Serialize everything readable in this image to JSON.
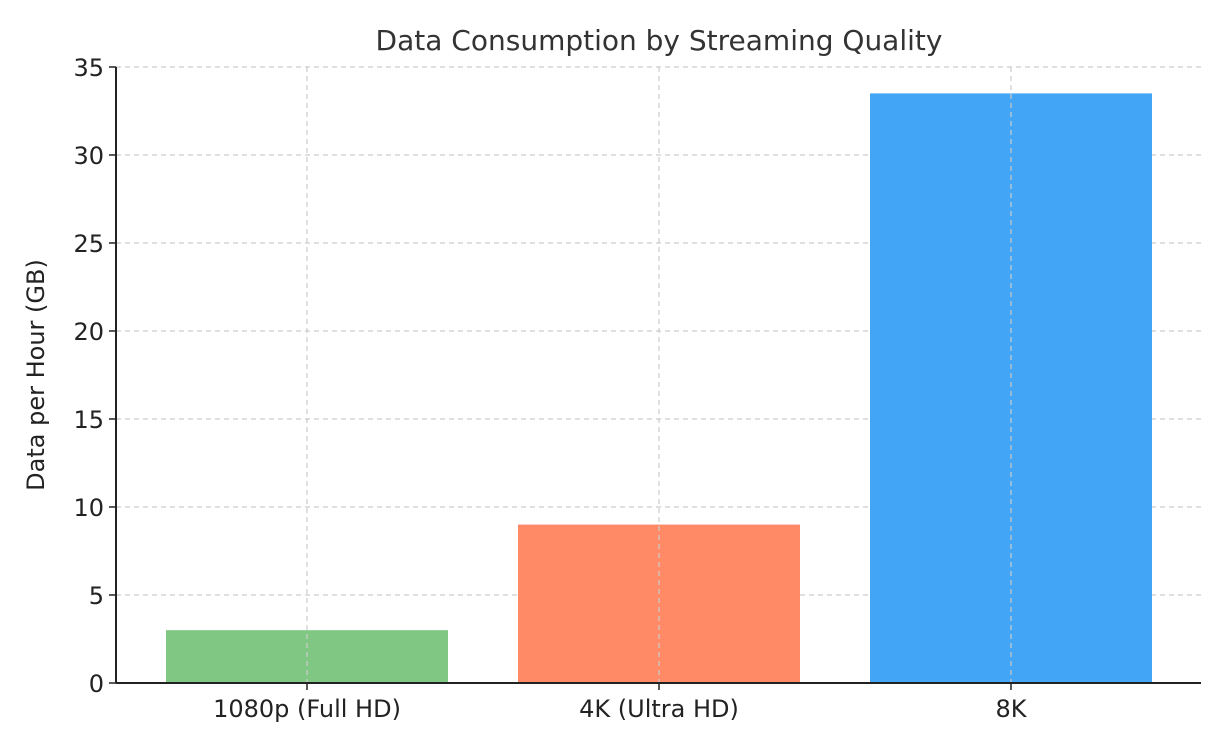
{
  "chart_data": {
    "type": "bar",
    "title": "Data Consumption by Streaming Quality",
    "xlabel": "",
    "ylabel": "Data per Hour (GB)",
    "categories": [
      "1080p (Full HD)",
      "4K (Ultra HD)",
      "8K"
    ],
    "values": [
      3,
      9,
      33.5
    ],
    "colors": [
      "#81c784",
      "#ff8a65",
      "#42a5f5"
    ],
    "ylim": [
      0,
      35
    ],
    "yticks": [
      0,
      5,
      10,
      15,
      20,
      25,
      30,
      35
    ],
    "grid": true
  }
}
